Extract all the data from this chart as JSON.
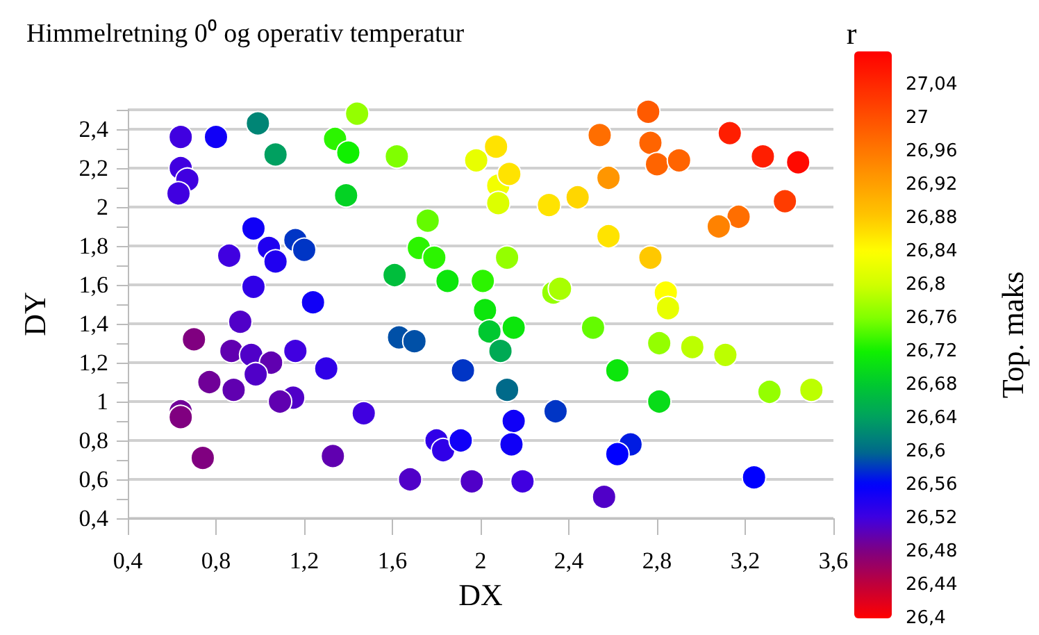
{
  "chart_data": {
    "type": "scatter",
    "title": "Himmelretning 0⁰ og operativ temperatur",
    "xlabel": "DX",
    "ylabel": "DY",
    "clabel": "Top. maks",
    "annotations": [
      "r"
    ],
    "xlim": [
      0.4,
      3.6
    ],
    "xticks": [
      {
        "value": 0.4,
        "label": "0,4"
      },
      {
        "value": 0.8,
        "label": "0,8"
      },
      {
        "value": 1.2,
        "label": "1,2"
      },
      {
        "value": 1.6,
        "label": "1,6"
      },
      2,
      {
        "value": 2.4,
        "label": "2,4"
      },
      {
        "value": 2.8,
        "label": "2,8"
      },
      {
        "value": 3.2,
        "label": "3,2"
      },
      {
        "value": 3.6,
        "label": "3,6"
      }
    ],
    "ylim": [
      0.4,
      2.5
    ],
    "yticks": [
      {
        "value": 0.4,
        "label": "0,4"
      },
      {
        "value": 0.6,
        "label": "0,6"
      },
      {
        "value": 0.8,
        "label": "0,8"
      },
      1,
      {
        "value": 1.2,
        "label": "1,2"
      },
      {
        "value": 1.4,
        "label": "1,4"
      },
      {
        "value": 1.6,
        "label": "1,6"
      },
      {
        "value": 1.8,
        "label": "1,8"
      },
      2,
      {
        "value": 2.2,
        "label": "2,2"
      },
      {
        "value": 2.4,
        "label": "2,4"
      }
    ],
    "clim": [
      26.4,
      27.08
    ],
    "cticks": [
      {
        "value": 26.4,
        "label": "26,4"
      },
      {
        "value": 26.44,
        "label": "26,44"
      },
      {
        "value": 26.48,
        "label": "26,48"
      },
      {
        "value": 26.52,
        "label": "26,52"
      },
      {
        "value": 26.56,
        "label": "26,56"
      },
      {
        "value": 26.6,
        "label": "26,6"
      },
      {
        "value": 26.64,
        "label": "26,64"
      },
      {
        "value": 26.68,
        "label": "26,68"
      },
      {
        "value": 26.72,
        "label": "26,72"
      },
      {
        "value": 26.76,
        "label": "26,76"
      },
      {
        "value": 26.8,
        "label": "26,8"
      },
      {
        "value": 26.84,
        "label": "26,84"
      },
      {
        "value": 26.88,
        "label": "26,88"
      },
      {
        "value": 26.92,
        "label": "26,92"
      },
      {
        "value": 26.96,
        "label": "26,96"
      },
      27,
      {
        "value": 27.04,
        "label": "27,04"
      }
    ],
    "grid": "y",
    "marker": "circle",
    "x": [
      0.64,
      0.8,
      0.99,
      1.07,
      0.64,
      0.67,
      0.63,
      1.44,
      1.34,
      1.4,
      1.62,
      1.39,
      1.98,
      2.07,
      2.08,
      2.08,
      0.97,
      1.04,
      1.07,
      1.16,
      1.2,
      0.86,
      0.97,
      1.24,
      0.91,
      0.7,
      0.87,
      0.96,
      1.05,
      1.16,
      1.3,
      1.76,
      1.72,
      1.79,
      1.85,
      1.61,
      2.01,
      2.02,
      2.04,
      1.63,
      1.7,
      1.92,
      2.76,
      2.54,
      2.77,
      2.8,
      2.9,
      3.13,
      3.28,
      3.44,
      3.38,
      3.17,
      3.08,
      2.58,
      2.13,
      2.31,
      2.44,
      2.58,
      2.77,
      2.12,
      2.33,
      2.36,
      2.84,
      2.85,
      2.15,
      2.51,
      2.09,
      2.81,
      2.96,
      3.11,
      2.62,
      0.77,
      0.88,
      0.98,
      1.15,
      1.09,
      0.64,
      0.64,
      0.74,
      1.33,
      1.47,
      1.68,
      1.96,
      1.8,
      1.83,
      1.91,
      2.12,
      2.34,
      2.15,
      2.14,
      2.68,
      2.62,
      2.19,
      2.56,
      3.24,
      2.81,
      3.31,
      3.5
    ],
    "values": [
      2.36,
      2.36,
      2.43,
      2.27,
      2.2,
      2.14,
      2.07,
      2.48,
      2.35,
      2.28,
      2.26,
      2.06,
      2.24,
      2.31,
      2.11,
      2.02,
      1.89,
      1.79,
      1.72,
      1.83,
      1.78,
      1.75,
      1.59,
      1.51,
      1.41,
      1.32,
      1.26,
      1.24,
      1.2,
      1.26,
      1.17,
      1.93,
      1.79,
      1.74,
      1.62,
      1.65,
      1.62,
      1.47,
      1.36,
      1.33,
      1.31,
      1.16,
      2.49,
      2.37,
      2.33,
      2.22,
      2.24,
      2.38,
      2.26,
      2.23,
      2.03,
      1.95,
      1.9,
      2.15,
      2.17,
      2.01,
      2.05,
      1.85,
      1.74,
      1.74,
      1.56,
      1.58,
      1.56,
      1.48,
      1.38,
      1.38,
      1.26,
      1.3,
      1.28,
      1.24,
      1.16,
      1.1,
      1.06,
      1.14,
      1.02,
      1,
      0.95,
      0.92,
      0.71,
      0.72,
      0.94,
      0.6,
      0.59,
      0.8,
      0.75,
      0.8,
      1.06,
      0.95,
      0.9,
      0.78,
      0.78,
      0.73,
      0.59,
      0.51,
      0.61,
      1,
      1.05,
      1.06
    ],
    "cvalues": [
      26.52,
      26.55,
      26.62,
      26.64,
      26.52,
      26.52,
      26.52,
      26.77,
      26.73,
      26.72,
      26.76,
      26.69,
      26.82,
      26.86,
      26.83,
      26.81,
      26.55,
      26.54,
      26.54,
      26.58,
      26.58,
      26.52,
      26.53,
      26.55,
      26.51,
      26.48,
      26.5,
      26.51,
      26.5,
      26.52,
      26.53,
      26.75,
      26.73,
      26.73,
      26.71,
      26.67,
      26.73,
      26.71,
      26.68,
      26.59,
      26.59,
      26.58,
      26.99,
      26.97,
      26.98,
      26.98,
      26.98,
      27.05,
      27.05,
      27.07,
      27.02,
      26.97,
      26.95,
      26.93,
      26.86,
      26.86,
      26.87,
      26.86,
      26.88,
      26.77,
      26.77,
      26.78,
      26.84,
      26.82,
      26.71,
      26.75,
      26.65,
      26.77,
      26.79,
      26.79,
      26.71,
      26.49,
      26.5,
      26.51,
      26.51,
      26.5,
      26.49,
      26.48,
      26.48,
      26.5,
      26.52,
      26.51,
      26.51,
      26.53,
      26.53,
      26.55,
      26.6,
      26.58,
      26.55,
      26.55,
      26.57,
      26.56,
      26.52,
      26.51,
      26.56,
      26.7,
      26.77,
      26.79
    ]
  }
}
